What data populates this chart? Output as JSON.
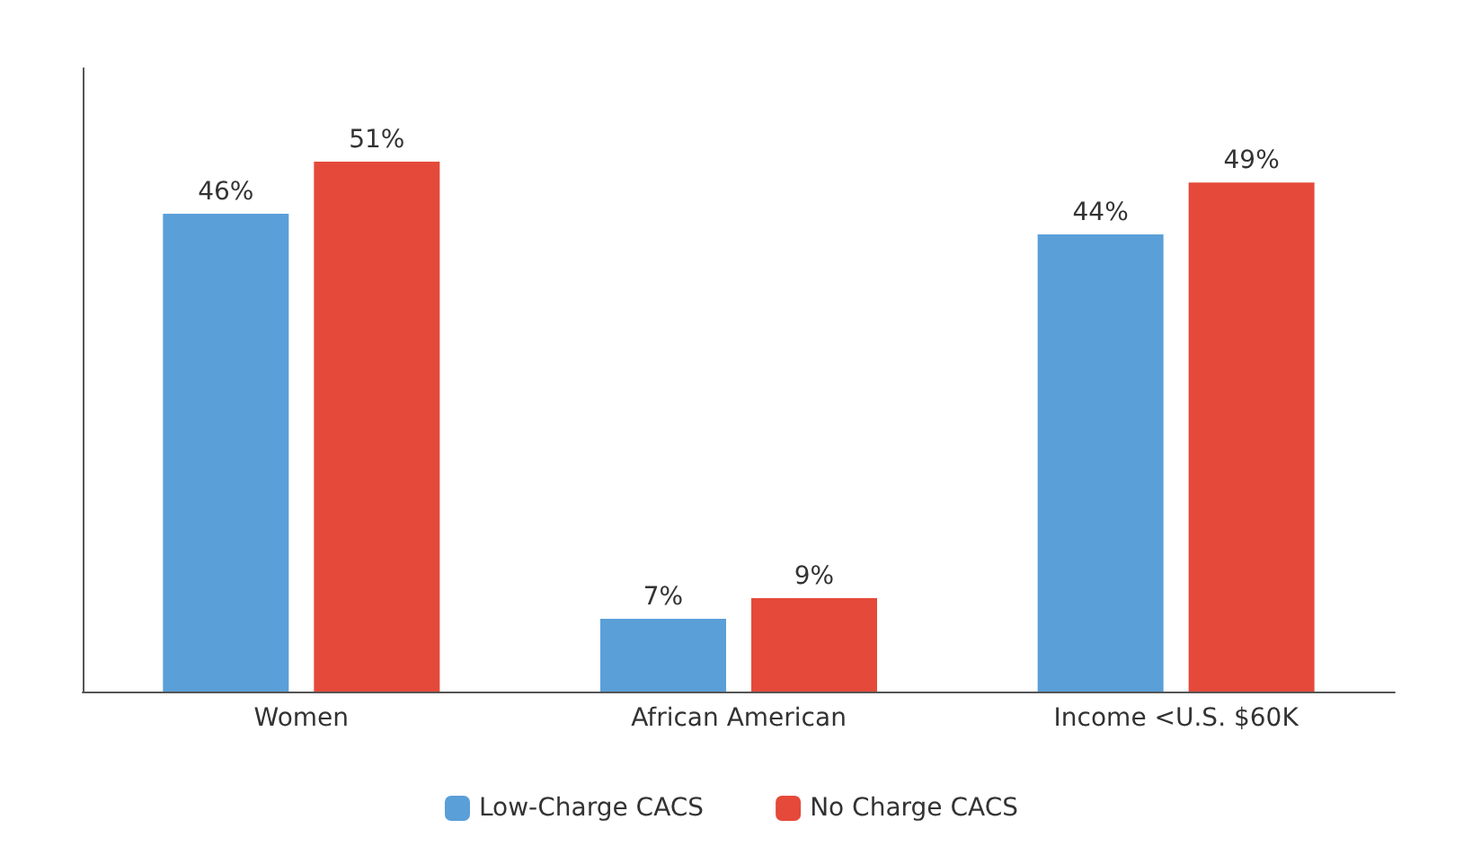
{
  "chart_data": {
    "type": "bar",
    "categories": [
      "Women",
      "African American",
      "Income <U.S. $60K"
    ],
    "series": [
      {
        "name": "Low-Charge CACS",
        "color": "#5a9fd8",
        "values": [
          46,
          7,
          44
        ],
        "value_labels": [
          "46%",
          "7%",
          "44%"
        ]
      },
      {
        "name": "No Charge CACS",
        "color": "#e5493a",
        "values": [
          51,
          9,
          49
        ],
        "value_labels": [
          "51%",
          "9%",
          "49%"
        ]
      }
    ],
    "legend": "bottom",
    "grid": false,
    "tick_labels": "x"
  }
}
